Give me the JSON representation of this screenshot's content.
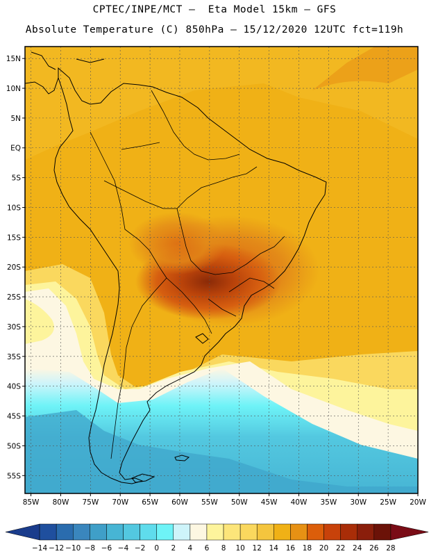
{
  "header": {
    "line1": "CPTEC/INPE/MCT –  Eta Model 15km – GFS",
    "line2": "Absolute Temperature (C) 850hPa – 15/12/2020 12UTC fct=119h"
  },
  "map": {
    "lat_labels": [
      "15N",
      "10N",
      "5N",
      "EQ",
      "5S",
      "10S",
      "15S",
      "20S",
      "25S",
      "30S",
      "35S",
      "40S",
      "45S",
      "50S",
      "55S"
    ],
    "lat_values": [
      15,
      10,
      5,
      0,
      -5,
      -10,
      -15,
      -20,
      -25,
      -30,
      -35,
      -40,
      -45,
      -50,
      -55
    ],
    "lon_labels": [
      "85W",
      "80W",
      "75W",
      "70W",
      "65W",
      "60W",
      "55W",
      "50W",
      "45W",
      "40W",
      "35W",
      "30W",
      "25W",
      "20W"
    ],
    "lon_values": [
      -85,
      -80,
      -75,
      -70,
      -65,
      -60,
      -55,
      -50,
      -45,
      -40,
      -35,
      -30,
      -25,
      -20
    ],
    "lat_range": [
      -58,
      17
    ],
    "lon_range": [
      -86,
      -20
    ],
    "ocean_color": "#f2b21a"
  },
  "colorbar": {
    "labels": [
      "-14",
      "-12",
      "-10",
      "-8",
      "-6",
      "-4",
      "-2",
      "0",
      "2",
      "4",
      "6",
      "8",
      "10",
      "12",
      "14",
      "16",
      "18",
      "20",
      "22",
      "24",
      "26",
      "28"
    ],
    "colors": [
      "#1a3c8c",
      "#1f4f9e",
      "#2a6cae",
      "#3a86bd",
      "#3f9fc8",
      "#47b5d4",
      "#53c8e0",
      "#5fdcec",
      "#6ef3f7",
      "#cef4fa",
      "#fdf7e2",
      "#fdf49c",
      "#fce57a",
      "#fad85e",
      "#f4c53e",
      "#f0b116",
      "#e79114",
      "#dc5e0a",
      "#c8420a",
      "#a92d08",
      "#8a1e0b",
      "#6b1208",
      "#7a0c16"
    ]
  }
}
